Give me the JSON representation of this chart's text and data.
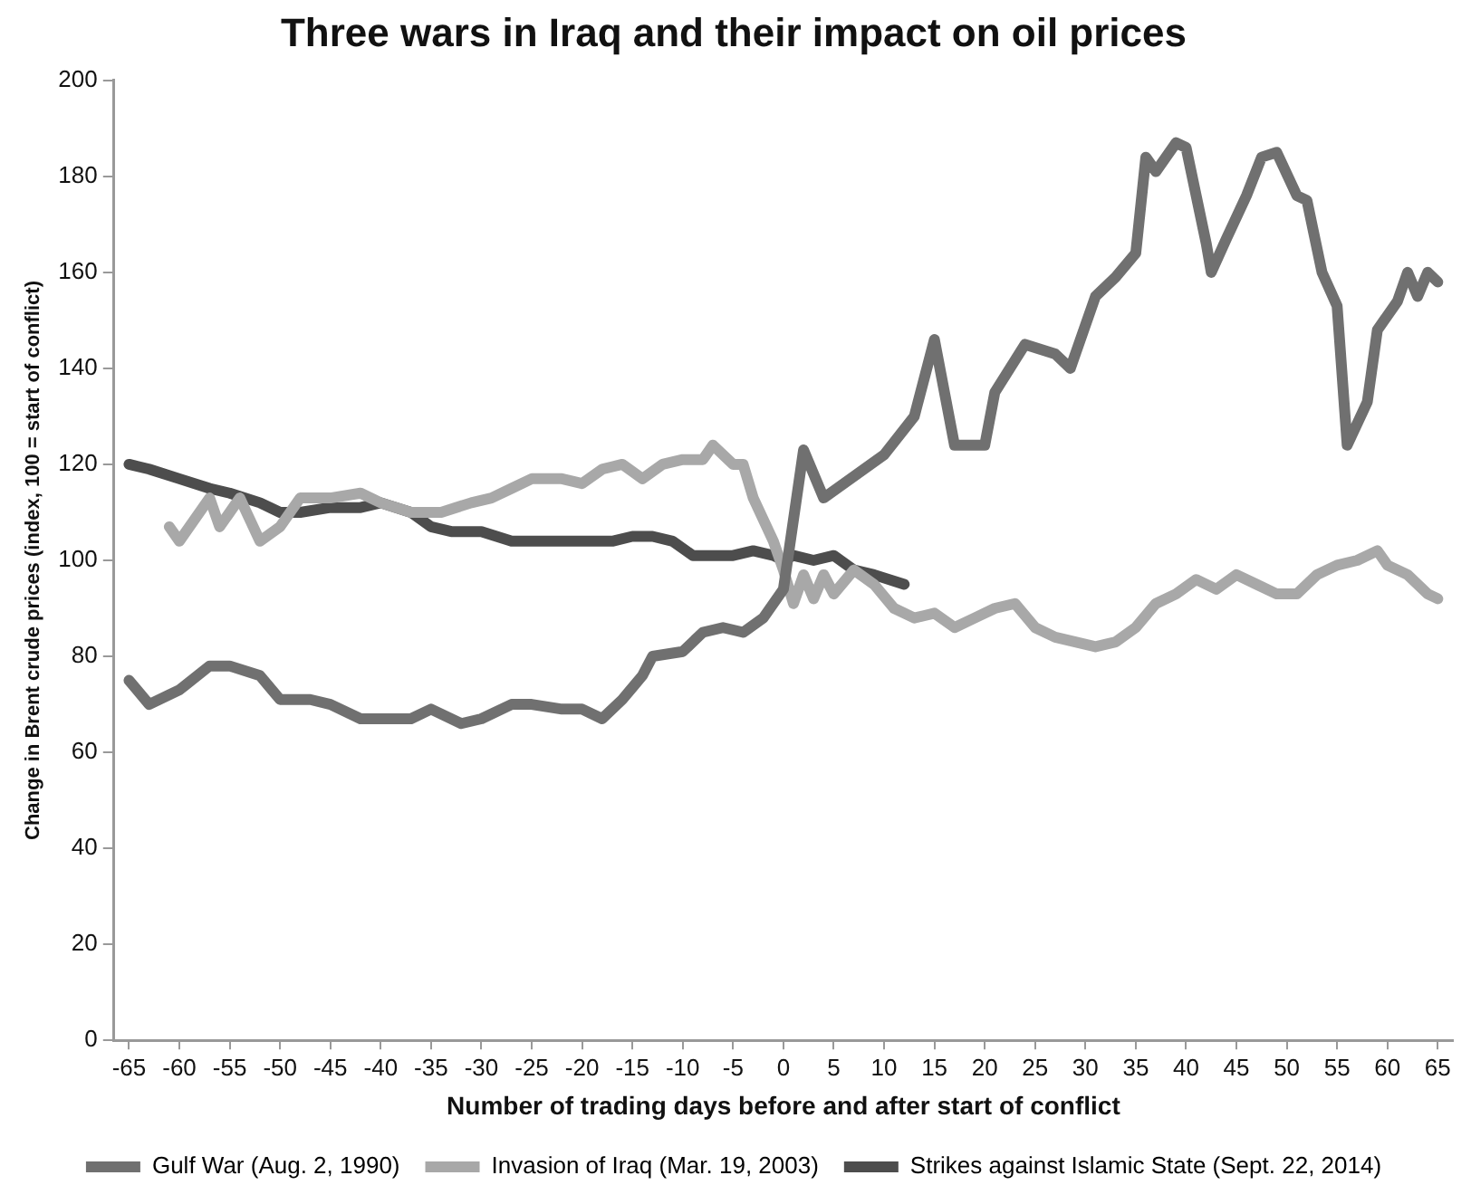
{
  "chart_data": {
    "type": "line",
    "title": "Three wars in Iraq and their impact on oil prices",
    "xlabel": "Number of trading days before and after start of conflict",
    "ylabel": "Change in Brent crude prices (index, 100 = start of conflict)",
    "xlim": [
      -66.5,
      66.5
    ],
    "xticks": [
      -65,
      -60,
      -55,
      -50,
      -45,
      -40,
      -35,
      -30,
      -25,
      -20,
      -15,
      -10,
      -5,
      0,
      5,
      10,
      15,
      20,
      25,
      30,
      35,
      40,
      45,
      50,
      55,
      60,
      65
    ],
    "ylim": [
      0,
      200
    ],
    "yticks": [
      0,
      20,
      40,
      60,
      80,
      100,
      120,
      140,
      160,
      180,
      200
    ],
    "grid": false,
    "legend": "bottom",
    "marker": "none",
    "line_style": "solid",
    "series": [
      {
        "name": "Gulf War (Aug. 2, 1990)",
        "color": "#707070",
        "x": [
          -65,
          -63,
          -60,
          -57,
          -55,
          -52,
          -50,
          -47,
          -45,
          -42,
          -40,
          -37,
          -35,
          -32,
          -30,
          -27,
          -25,
          -22,
          -20,
          -18,
          -16,
          -14,
          -13,
          -10,
          -8,
          -6,
          -4,
          -2,
          0,
          2,
          4,
          10,
          13,
          15,
          17,
          20,
          21,
          24,
          27,
          28.5,
          31,
          33,
          35,
          36,
          37,
          39,
          40,
          42,
          42.5,
          44,
          46,
          47.5,
          49,
          51,
          52,
          53.5,
          55,
          56,
          58,
          59,
          61,
          62,
          63,
          64,
          65
        ],
        "values": [
          75,
          70,
          73,
          78,
          78,
          76,
          71,
          71,
          70,
          67,
          67,
          67,
          69,
          66,
          67,
          70,
          70,
          69,
          69,
          67,
          71,
          76,
          80,
          81,
          85,
          86,
          85,
          88,
          94,
          123,
          113,
          122,
          130,
          146,
          124,
          124,
          135,
          145,
          143,
          140,
          155,
          159,
          164,
          184,
          181,
          187,
          186,
          166,
          160,
          167,
          176,
          184,
          185,
          176,
          175,
          160,
          153,
          124,
          133,
          148,
          154,
          160,
          155,
          160,
          158
        ]
      },
      {
        "name": "Invasion of Iraq (Mar. 19, 2003)",
        "color": "#a8a8a8",
        "x": [
          -61,
          -60,
          -57,
          -56,
          -54,
          -52,
          -50,
          -48,
          -45,
          -42,
          -40,
          -37,
          -34,
          -31,
          -29,
          -27,
          -25,
          -22,
          -20,
          -18,
          -16,
          -14,
          -12,
          -10,
          -8,
          -7,
          -5,
          -4,
          -3,
          -1,
          0,
          1,
          2,
          3,
          4,
          5,
          7,
          9,
          11,
          13,
          15,
          17,
          19,
          21,
          23,
          25,
          27,
          29,
          31,
          33,
          35,
          37,
          39,
          41,
          43,
          45,
          47,
          49,
          51,
          53,
          55,
          57,
          59,
          60,
          62,
          64,
          65
        ],
        "values": [
          107,
          104,
          113,
          107,
          113,
          104,
          107,
          113,
          113,
          114,
          112,
          110,
          110,
          112,
          113,
          115,
          117,
          117,
          116,
          119,
          120,
          117,
          120,
          121,
          121,
          124,
          120,
          120,
          113,
          104,
          98,
          91,
          97,
          92,
          97,
          93,
          98,
          95,
          90,
          88,
          89,
          86,
          88,
          90,
          91,
          86,
          84,
          83,
          82,
          83,
          86,
          91,
          93,
          96,
          94,
          97,
          95,
          93,
          93,
          97,
          99,
          100,
          102,
          99,
          97,
          93,
          92
        ]
      },
      {
        "name": "Strikes against Islamic State (Sept. 22, 2014)",
        "color": "#4d4d4d",
        "x": [
          -65,
          -63,
          -60,
          -57,
          -55,
          -52,
          -50,
          -48,
          -45,
          -42,
          -40,
          -37,
          -35,
          -33,
          -30,
          -27,
          -25,
          -22,
          -20,
          -17,
          -15,
          -13,
          -11,
          -9,
          -7,
          -5,
          -3,
          -1,
          0,
          1,
          3,
          5,
          7,
          9,
          12
        ],
        "values": [
          120,
          119,
          117,
          115,
          114,
          112,
          110,
          110,
          111,
          111,
          112,
          110,
          107,
          106,
          106,
          104,
          104,
          104,
          104,
          104,
          105,
          105,
          104,
          101,
          101,
          101,
          102,
          101,
          100,
          101,
          100,
          101,
          98,
          97,
          95
        ]
      }
    ]
  }
}
